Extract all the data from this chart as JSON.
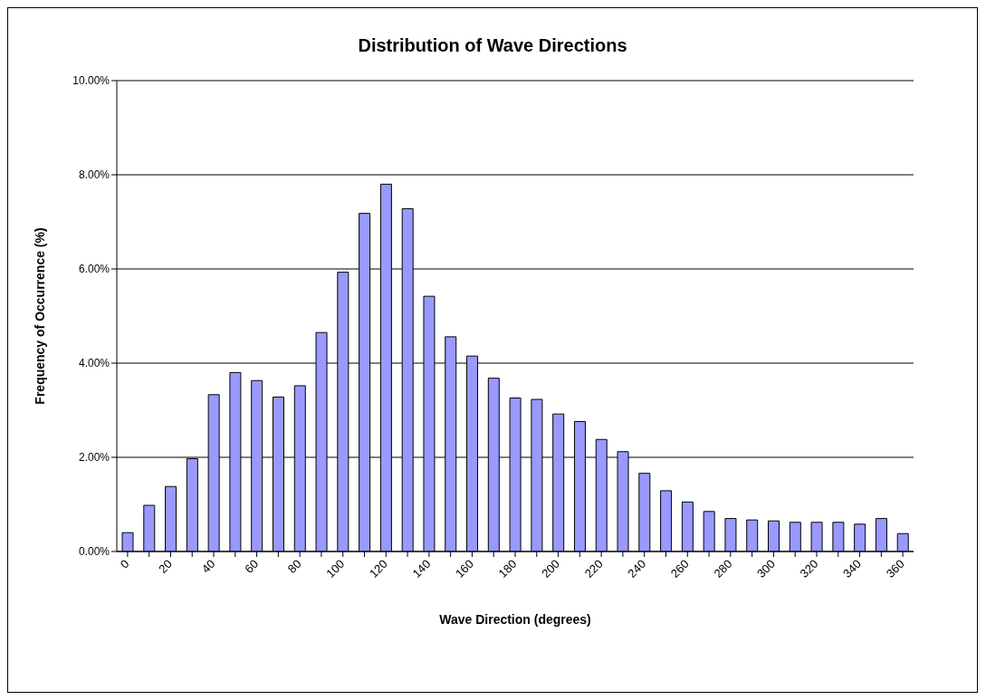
{
  "chart_data": {
    "type": "bar",
    "title": "Distribution of Wave Directions",
    "xlabel": "Wave Direction (degrees)",
    "ylabel": "Frequency of Occurrence (%)",
    "categories": [
      "0",
      null,
      "20",
      null,
      "40",
      null,
      "60",
      null,
      "80",
      null,
      "100",
      null,
      "120",
      null,
      "140",
      null,
      "160",
      null,
      "180",
      null,
      "200",
      null,
      "220",
      null,
      "240",
      null,
      "260",
      null,
      "280",
      null,
      "300",
      null,
      "320",
      null,
      "340",
      null,
      "360"
    ],
    "values": [
      0.4,
      0.98,
      1.38,
      1.97,
      3.33,
      3.8,
      3.63,
      3.28,
      3.52,
      4.65,
      5.93,
      7.18,
      7.8,
      7.28,
      5.42,
      4.56,
      4.15,
      3.68,
      3.26,
      3.23,
      2.92,
      2.76,
      2.38,
      2.12,
      1.66,
      1.29,
      1.05,
      0.85,
      0.7,
      0.67,
      0.65,
      0.62,
      0.62,
      0.62,
      0.58,
      0.7,
      0.38
    ],
    "color": "#9999ff",
    "ylim": [
      0,
      10
    ],
    "yticks": [
      {
        "value": 0,
        "label": "0.00%"
      },
      {
        "value": 2,
        "label": "2.00%"
      },
      {
        "value": 4,
        "label": "4.00%"
      },
      {
        "value": 6,
        "label": "6.00%"
      },
      {
        "value": 8,
        "label": "8.00%"
      },
      {
        "value": 10,
        "label": "10.00%"
      }
    ],
    "grid": "y",
    "legend": false
  }
}
